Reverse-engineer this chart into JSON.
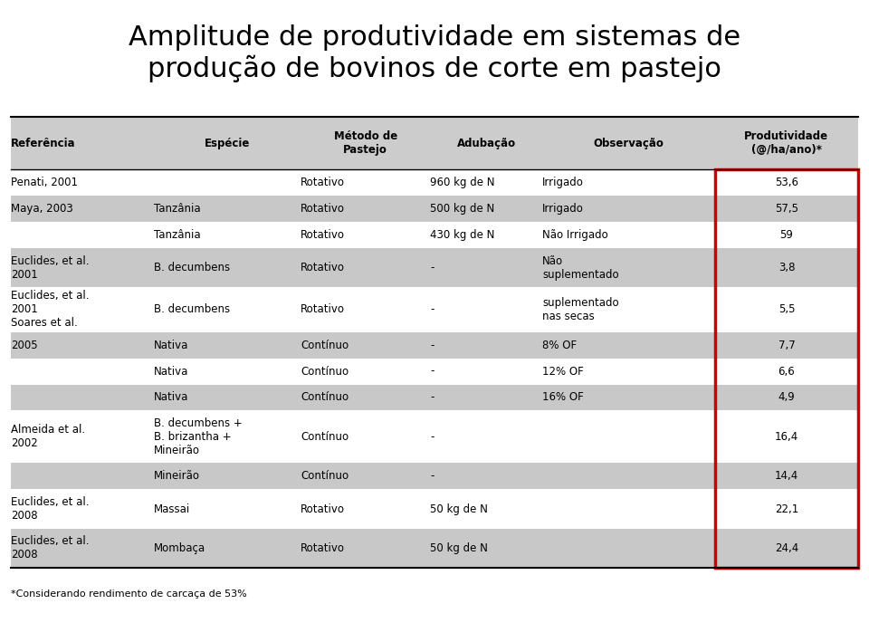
{
  "title": "Amplitude de produtividade em sistemas de\nprodução de bovinos de corte em pastejo",
  "title_fontsize": 22,
  "background_color": "#ffffff",
  "header_bg": "#cccccc",
  "row_bg_light": "#ffffff",
  "row_bg_dark": "#c8c8c8",
  "red_box_color": "#cc0000",
  "footer": "*Considerando rendimento de carcaça de 53%",
  "columns": [
    "Referência",
    "Espécie",
    "Método de\nPastejo",
    "Adubação",
    "Observação",
    "Produtividade\n(@/ha/ano)*"
  ],
  "rows": [
    {
      "ref": "Penati, 2001",
      "especie": "",
      "metodo": "Rotativo",
      "adubacao": "960 kg de N",
      "obs": "Irrigado",
      "prod": "53,6",
      "bg": "white"
    },
    {
      "ref": "Maya, 2003",
      "especie": "Tanzânia",
      "metodo": "Rotativo",
      "adubacao": "500 kg de N",
      "obs": "Irrigado",
      "prod": "57,5",
      "bg": "gray"
    },
    {
      "ref": "",
      "especie": "Tanzânia",
      "metodo": "Rotativo",
      "adubacao": "430 kg de N",
      "obs": "Não Irrigado",
      "prod": "59",
      "bg": "white"
    },
    {
      "ref": "Euclides, et al.\n2001",
      "especie": "B. decumbens",
      "metodo": "Rotativo",
      "adubacao": "-",
      "obs": "Não\nsuplementado",
      "prod": "3,8",
      "bg": "gray"
    },
    {
      "ref": "Euclides, et al.\n2001\nSoares et al.",
      "especie": "B. decumbens",
      "metodo": "Rotativo",
      "adubacao": "-",
      "obs": "suplementado\nnas secas",
      "prod": "5,5",
      "bg": "white"
    },
    {
      "ref": "2005",
      "especie": "Nativa",
      "metodo": "Contínuo",
      "adubacao": "-",
      "obs": "8% OF",
      "prod": "7,7",
      "bg": "gray"
    },
    {
      "ref": "",
      "especie": "Nativa",
      "metodo": "Contínuo",
      "adubacao": "-",
      "obs": "12% OF",
      "prod": "6,6",
      "bg": "white"
    },
    {
      "ref": "",
      "especie": "Nativa",
      "metodo": "Contínuo",
      "adubacao": "-",
      "obs": "16% OF",
      "prod": "4,9",
      "bg": "gray"
    },
    {
      "ref": "Almeida et al.\n2002",
      "especie": "B. decumbens +\nB. brizantha +\nMineirão",
      "metodo": "Contínuo",
      "adubacao": "-",
      "obs": "",
      "prod": "16,4",
      "bg": "white"
    },
    {
      "ref": "",
      "especie": "Mineirão",
      "metodo": "Contínuo",
      "adubacao": "-",
      "obs": "",
      "prod": "14,4",
      "bg": "gray"
    },
    {
      "ref": "Euclides, et al.\n2008",
      "especie": "Massai",
      "metodo": "Rotativo",
      "adubacao": "50 kg de N",
      "obs": "",
      "prod": "22,1",
      "bg": "white"
    },
    {
      "ref": "Euclides, et al.\n2008",
      "especie": "Mombaça",
      "metodo": "Rotativo",
      "adubacao": "50 kg de N",
      "obs": "",
      "prod": "24,4",
      "bg": "gray"
    }
  ]
}
